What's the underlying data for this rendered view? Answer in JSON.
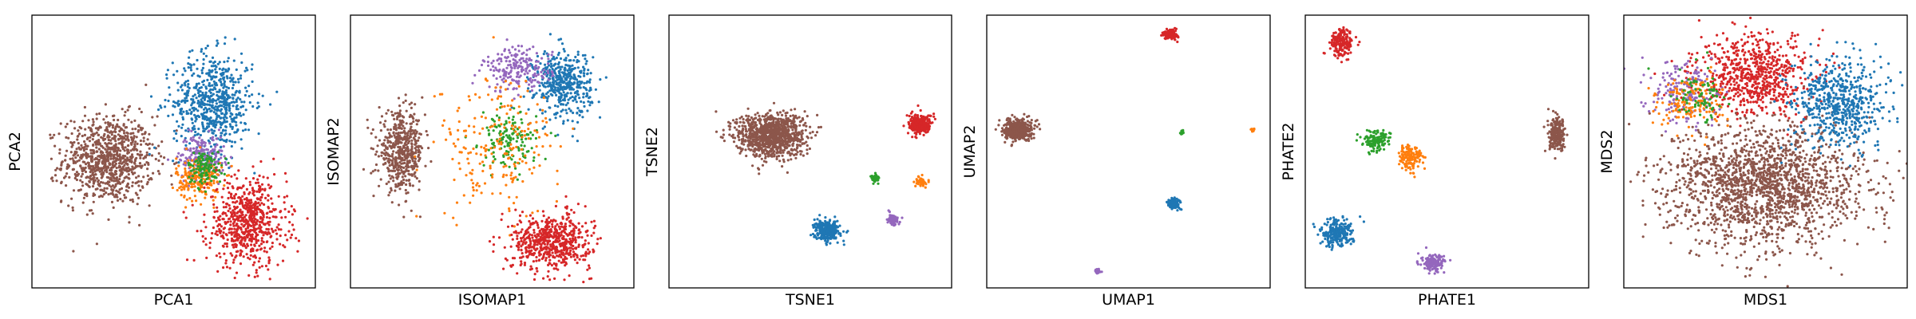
{
  "figure": {
    "background": "#ffffff"
  },
  "palette": {
    "blue": "#1f77b4",
    "orange": "#ff7f0e",
    "green": "#2ca02c",
    "red": "#d62728",
    "purple": "#9467bd",
    "brown": "#8c564b"
  },
  "chart_data": [
    {
      "type": "scatter",
      "title": "",
      "xlabel": "PCA1",
      "ylabel": "PCA2",
      "xlim": [
        0,
        100
      ],
      "ylim": [
        0,
        100
      ],
      "ticks": "none",
      "grid": false,
      "legend": "none",
      "clusters": [
        {
          "color": "brown",
          "cx": 27,
          "cy": 47,
          "sx": 8,
          "sy": 8,
          "n": 900
        },
        {
          "color": "blue",
          "cx": 64,
          "cy": 68,
          "sx": 7,
          "sy": 9,
          "n": 650
        },
        {
          "color": "purple",
          "cx": 60,
          "cy": 48,
          "sx": 4,
          "sy": 4,
          "n": 220
        },
        {
          "color": "orange",
          "cx": 59,
          "cy": 40,
          "sx": 4,
          "sy": 4,
          "n": 200
        },
        {
          "color": "green",
          "cx": 61,
          "cy": 44,
          "sx": 3,
          "sy": 3,
          "n": 120
        },
        {
          "color": "red",
          "cx": 76,
          "cy": 24,
          "sx": 7,
          "sy": 8,
          "n": 650
        }
      ]
    },
    {
      "type": "scatter",
      "title": "",
      "xlabel": "ISOMAP1",
      "ylabel": "ISOMAP2",
      "xlim": [
        0,
        100
      ],
      "ylim": [
        0,
        100
      ],
      "ticks": "none",
      "grid": false,
      "legend": "none",
      "clusters": [
        {
          "color": "brown",
          "cx": 18,
          "cy": 50,
          "sx": 4,
          "sy": 7,
          "n": 500
        },
        {
          "color": "blue",
          "cx": 75,
          "cy": 75,
          "sx": 5,
          "sy": 6,
          "n": 450
        },
        {
          "color": "purple",
          "cx": 59,
          "cy": 80,
          "sx": 6,
          "sy": 4,
          "n": 200
        },
        {
          "color": "green",
          "cx": 56,
          "cy": 54,
          "sx": 5,
          "sy": 5,
          "n": 150
        },
        {
          "color": "orange",
          "cx": 52,
          "cy": 52,
          "sx": 11,
          "sy": 13,
          "n": 220
        },
        {
          "color": "red",
          "cx": 71,
          "cy": 17,
          "sx": 7,
          "sy": 5,
          "n": 600
        }
      ]
    },
    {
      "type": "scatter",
      "title": "",
      "xlabel": "TSNE1",
      "ylabel": "TSNE2",
      "xlim": [
        0,
        100
      ],
      "ylim": [
        0,
        100
      ],
      "ticks": "none",
      "grid": false,
      "legend": "none",
      "clusters": [
        {
          "color": "brown",
          "cx": 36,
          "cy": 56,
          "sx": 6,
          "sy": 4,
          "n": 1000
        },
        {
          "color": "red",
          "cx": 89,
          "cy": 60,
          "sx": 2,
          "sy": 1.8,
          "n": 300
        },
        {
          "color": "green",
          "cx": 73,
          "cy": 40,
          "sx": 0.8,
          "sy": 0.8,
          "n": 40
        },
        {
          "color": "orange",
          "cx": 89,
          "cy": 39,
          "sx": 0.9,
          "sy": 0.9,
          "n": 50
        },
        {
          "color": "purple",
          "cx": 79,
          "cy": 25,
          "sx": 1.1,
          "sy": 1.0,
          "n": 70
        },
        {
          "color": "blue",
          "cx": 56,
          "cy": 21,
          "sx": 2.2,
          "sy": 1.8,
          "n": 300
        }
      ]
    },
    {
      "type": "scatter",
      "title": "",
      "xlabel": "UMAP1",
      "ylabel": "UMAP2",
      "xlim": [
        0,
        100
      ],
      "ylim": [
        0,
        100
      ],
      "ticks": "none",
      "grid": false,
      "legend": "none",
      "clusters": [
        {
          "color": "brown",
          "cx": 11,
          "cy": 58,
          "sx": 2.4,
          "sy": 1.8,
          "n": 500
        },
        {
          "color": "red",
          "cx": 65,
          "cy": 93,
          "sx": 1.2,
          "sy": 0.9,
          "n": 150
        },
        {
          "color": "green",
          "cx": 69,
          "cy": 57,
          "sx": 0.3,
          "sy": 0.3,
          "n": 20
        },
        {
          "color": "orange",
          "cx": 94,
          "cy": 58,
          "sx": 0.3,
          "sy": 0.3,
          "n": 20
        },
        {
          "color": "blue",
          "cx": 66,
          "cy": 31,
          "sx": 1.1,
          "sy": 0.9,
          "n": 150
        },
        {
          "color": "purple",
          "cx": 39,
          "cy": 6,
          "sx": 0.6,
          "sy": 0.4,
          "n": 40
        }
      ]
    },
    {
      "type": "scatter",
      "title": "",
      "xlabel": "PHATE1",
      "ylabel": "PHATE2",
      "xlim": [
        0,
        100
      ],
      "ylim": [
        0,
        100
      ],
      "ticks": "none",
      "grid": false,
      "legend": "none",
      "clusters": [
        {
          "color": "red",
          "cx": 13,
          "cy": 90,
          "sx": 2,
          "sy": 2.5,
          "n": 180
        },
        {
          "color": "green",
          "cx": 25,
          "cy": 54,
          "sx": 2.5,
          "sy": 2,
          "n": 120
        },
        {
          "color": "orange",
          "cx": 37,
          "cy": 48,
          "sx": 2,
          "sy": 2.5,
          "n": 150
        },
        {
          "color": "blue",
          "cx": 11,
          "cy": 20,
          "sx": 3,
          "sy": 2.5,
          "n": 220
        },
        {
          "color": "purple",
          "cx": 45,
          "cy": 9,
          "sx": 2,
          "sy": 1.5,
          "n": 150
        },
        {
          "color": "brown",
          "cx": 89,
          "cy": 56,
          "sx": 1.5,
          "sy": 3,
          "n": 220
        }
      ]
    },
    {
      "type": "scatter",
      "title": "",
      "xlabel": "MDS1",
      "ylabel": "MDS2",
      "xlim": [
        0,
        100
      ],
      "ylim": [
        0,
        100
      ],
      "ticks": "none",
      "grid": false,
      "legend": "none",
      "clusters": [
        {
          "color": "brown",
          "cx": 50,
          "cy": 38,
          "sx": 17,
          "sy": 11,
          "n": 1800
        },
        {
          "color": "red",
          "cx": 46,
          "cy": 78,
          "sx": 10,
          "sy": 7,
          "n": 700
        },
        {
          "color": "blue",
          "cx": 76,
          "cy": 68,
          "sx": 8,
          "sy": 8,
          "n": 600
        },
        {
          "color": "purple",
          "cx": 22,
          "cy": 72,
          "sx": 6,
          "sy": 6,
          "n": 180
        },
        {
          "color": "orange",
          "cx": 24,
          "cy": 68,
          "sx": 6,
          "sy": 5,
          "n": 150
        },
        {
          "color": "green",
          "cx": 26,
          "cy": 70,
          "sx": 5,
          "sy": 5,
          "n": 80
        }
      ]
    }
  ]
}
